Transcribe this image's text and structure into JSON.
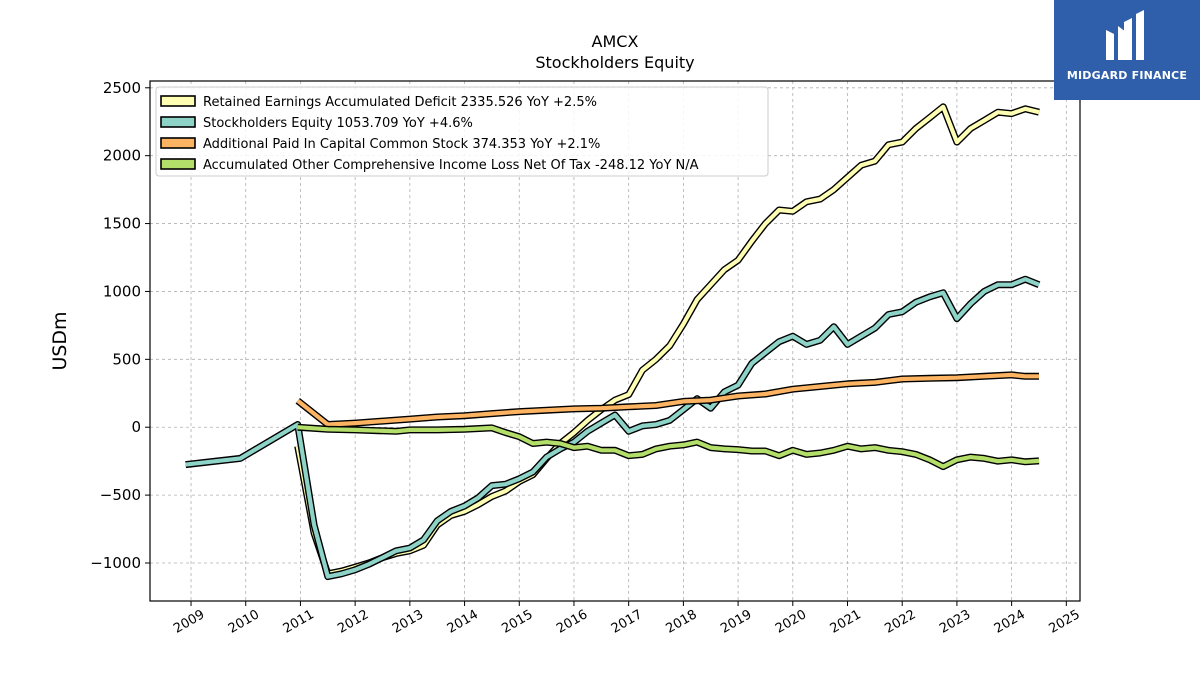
{
  "brand": {
    "name": "MIDGARD FINANCE",
    "color": "#2f5faa"
  },
  "chart_data": {
    "type": "line",
    "title": "AMCX",
    "subtitle": "Stockholders  Equity",
    "xlabel": "",
    "ylabel": "USDm",
    "xlim": [
      2008.25,
      2025.25
    ],
    "ylim": [
      -1280,
      2550
    ],
    "grid": true,
    "legend_position": "top-left",
    "x_ticks": [
      2009,
      2010,
      2011,
      2012,
      2013,
      2014,
      2015,
      2016,
      2017,
      2018,
      2019,
      2020,
      2021,
      2022,
      2023,
      2024,
      2025
    ],
    "y_ticks": [
      -1000,
      -500,
      0,
      500,
      1000,
      1500,
      2000,
      2500
    ],
    "y_tick_labels": [
      "−1000",
      "−500",
      "0",
      "500",
      "1000",
      "1500",
      "2000",
      "2500"
    ],
    "series": [
      {
        "name": "Retained Earnings Accumulated Deficit",
        "legend": "Retained Earnings Accumulated Deficit  2335.526 YoY +2.5%",
        "color": "#ffffb3",
        "points": [
          [
            2010.95,
            -140
          ],
          [
            2011.25,
            -780
          ],
          [
            2011.5,
            -1080
          ],
          [
            2011.75,
            -1060
          ],
          [
            2012.0,
            -1030
          ],
          [
            2012.25,
            -1000
          ],
          [
            2012.5,
            -960
          ],
          [
            2012.75,
            -930
          ],
          [
            2013.0,
            -910
          ],
          [
            2013.25,
            -870
          ],
          [
            2013.5,
            -720
          ],
          [
            2013.75,
            -650
          ],
          [
            2014.0,
            -620
          ],
          [
            2014.25,
            -570
          ],
          [
            2014.5,
            -510
          ],
          [
            2014.75,
            -470
          ],
          [
            2015.0,
            -400
          ],
          [
            2015.25,
            -350
          ],
          [
            2015.5,
            -230
          ],
          [
            2015.75,
            -120
          ],
          [
            2016.0,
            -40
          ],
          [
            2016.25,
            50
          ],
          [
            2016.5,
            130
          ],
          [
            2016.75,
            200
          ],
          [
            2017.0,
            240
          ],
          [
            2017.25,
            420
          ],
          [
            2017.5,
            500
          ],
          [
            2017.75,
            600
          ],
          [
            2018.0,
            760
          ],
          [
            2018.25,
            940
          ],
          [
            2018.5,
            1050
          ],
          [
            2018.75,
            1160
          ],
          [
            2019.0,
            1230
          ],
          [
            2019.25,
            1370
          ],
          [
            2019.5,
            1500
          ],
          [
            2019.75,
            1600
          ],
          [
            2020.0,
            1590
          ],
          [
            2020.25,
            1660
          ],
          [
            2020.5,
            1680
          ],
          [
            2020.75,
            1750
          ],
          [
            2021.0,
            1840
          ],
          [
            2021.25,
            1930
          ],
          [
            2021.5,
            1960
          ],
          [
            2021.75,
            2080
          ],
          [
            2022.0,
            2100
          ],
          [
            2022.25,
            2200
          ],
          [
            2022.5,
            2280
          ],
          [
            2022.75,
            2360
          ],
          [
            2023.0,
            2100
          ],
          [
            2023.25,
            2200
          ],
          [
            2023.5,
            2260
          ],
          [
            2023.75,
            2320
          ],
          [
            2024.0,
            2310
          ],
          [
            2024.25,
            2345
          ],
          [
            2024.5,
            2320
          ]
        ]
      },
      {
        "name": "Stockholders Equity",
        "legend": "Stockholders Equity  1053.709 YoY +4.6%",
        "color": "#8dd3c7",
        "points": [
          [
            2008.9,
            -275
          ],
          [
            2009.9,
            -230
          ],
          [
            2010.95,
            20
          ],
          [
            2011.25,
            -720
          ],
          [
            2011.5,
            -1100
          ],
          [
            2011.75,
            -1080
          ],
          [
            2012.0,
            -1050
          ],
          [
            2012.25,
            -1010
          ],
          [
            2012.5,
            -960
          ],
          [
            2012.75,
            -910
          ],
          [
            2013.0,
            -890
          ],
          [
            2013.25,
            -830
          ],
          [
            2013.5,
            -690
          ],
          [
            2013.75,
            -620
          ],
          [
            2014.0,
            -580
          ],
          [
            2014.25,
            -520
          ],
          [
            2014.5,
            -430
          ],
          [
            2014.75,
            -420
          ],
          [
            2015.0,
            -380
          ],
          [
            2015.25,
            -330
          ],
          [
            2015.5,
            -220
          ],
          [
            2015.75,
            -160
          ],
          [
            2016.0,
            -110
          ],
          [
            2016.25,
            -30
          ],
          [
            2016.5,
            30
          ],
          [
            2016.75,
            90
          ],
          [
            2017.0,
            -30
          ],
          [
            2017.25,
            10
          ],
          [
            2017.5,
            20
          ],
          [
            2017.75,
            50
          ],
          [
            2018.0,
            130
          ],
          [
            2018.25,
            210
          ],
          [
            2018.5,
            140
          ],
          [
            2018.75,
            260
          ],
          [
            2019.0,
            310
          ],
          [
            2019.25,
            470
          ],
          [
            2019.5,
            550
          ],
          [
            2019.75,
            630
          ],
          [
            2020.0,
            670
          ],
          [
            2020.25,
            610
          ],
          [
            2020.5,
            640
          ],
          [
            2020.75,
            740
          ],
          [
            2021.0,
            610
          ],
          [
            2021.25,
            670
          ],
          [
            2021.5,
            730
          ],
          [
            2021.75,
            830
          ],
          [
            2022.0,
            850
          ],
          [
            2022.25,
            920
          ],
          [
            2022.5,
            960
          ],
          [
            2022.75,
            990
          ],
          [
            2023.0,
            800
          ],
          [
            2023.25,
            910
          ],
          [
            2023.5,
            1000
          ],
          [
            2023.75,
            1050
          ],
          [
            2024.0,
            1050
          ],
          [
            2024.25,
            1090
          ],
          [
            2024.5,
            1050
          ]
        ]
      },
      {
        "name": "Additional Paid In Capital Common Stock",
        "legend": "Additional Paid In Capital Common Stock  374.353 YoY +2.1%",
        "color": "#fdb462",
        "points": [
          [
            2010.95,
            195
          ],
          [
            2011.5,
            20
          ],
          [
            2012.0,
            30
          ],
          [
            2012.5,
            45
          ],
          [
            2013.0,
            60
          ],
          [
            2013.5,
            75
          ],
          [
            2014.0,
            85
          ],
          [
            2014.5,
            100
          ],
          [
            2015.0,
            115
          ],
          [
            2015.5,
            125
          ],
          [
            2016.0,
            135
          ],
          [
            2016.5,
            140
          ],
          [
            2017.0,
            150
          ],
          [
            2017.5,
            160
          ],
          [
            2018.0,
            190
          ],
          [
            2018.5,
            200
          ],
          [
            2019.0,
            230
          ],
          [
            2019.5,
            245
          ],
          [
            2020.0,
            280
          ],
          [
            2020.5,
            300
          ],
          [
            2021.0,
            320
          ],
          [
            2021.5,
            330
          ],
          [
            2022.0,
            355
          ],
          [
            2022.5,
            360
          ],
          [
            2023.0,
            365
          ],
          [
            2023.5,
            375
          ],
          [
            2024.0,
            385
          ],
          [
            2024.25,
            375
          ],
          [
            2024.5,
            375
          ]
        ]
      },
      {
        "name": "Accumulated Other Comprehensive Income Loss Net Of Tax",
        "legend": "Accumulated Other Comprehensive Income Loss Net Of Tax  -248.12 YoY N/A",
        "color": "#b3de69",
        "points": [
          [
            2010.95,
            0
          ],
          [
            2011.5,
            -15
          ],
          [
            2012.0,
            -20
          ],
          [
            2012.75,
            -30
          ],
          [
            2013.0,
            -20
          ],
          [
            2013.5,
            -20
          ],
          [
            2014.0,
            -15
          ],
          [
            2014.5,
            -5
          ],
          [
            2014.75,
            -40
          ],
          [
            2015.0,
            -70
          ],
          [
            2015.25,
            -120
          ],
          [
            2015.5,
            -110
          ],
          [
            2015.75,
            -120
          ],
          [
            2016.0,
            -150
          ],
          [
            2016.25,
            -140
          ],
          [
            2016.5,
            -170
          ],
          [
            2016.75,
            -170
          ],
          [
            2017.0,
            -210
          ],
          [
            2017.25,
            -200
          ],
          [
            2017.5,
            -160
          ],
          [
            2017.75,
            -140
          ],
          [
            2018.0,
            -130
          ],
          [
            2018.25,
            -110
          ],
          [
            2018.5,
            -150
          ],
          [
            2018.75,
            -160
          ],
          [
            2019.0,
            -165
          ],
          [
            2019.25,
            -175
          ],
          [
            2019.5,
            -175
          ],
          [
            2019.75,
            -210
          ],
          [
            2020.0,
            -170
          ],
          [
            2020.25,
            -200
          ],
          [
            2020.5,
            -190
          ],
          [
            2020.75,
            -170
          ],
          [
            2021.0,
            -140
          ],
          [
            2021.25,
            -160
          ],
          [
            2021.5,
            -150
          ],
          [
            2021.75,
            -170
          ],
          [
            2022.0,
            -180
          ],
          [
            2022.25,
            -200
          ],
          [
            2022.5,
            -240
          ],
          [
            2022.75,
            -290
          ],
          [
            2023.0,
            -240
          ],
          [
            2023.25,
            -220
          ],
          [
            2023.5,
            -230
          ],
          [
            2023.75,
            -250
          ],
          [
            2024.0,
            -240
          ],
          [
            2024.25,
            -255
          ],
          [
            2024.5,
            -248
          ]
        ]
      }
    ]
  }
}
